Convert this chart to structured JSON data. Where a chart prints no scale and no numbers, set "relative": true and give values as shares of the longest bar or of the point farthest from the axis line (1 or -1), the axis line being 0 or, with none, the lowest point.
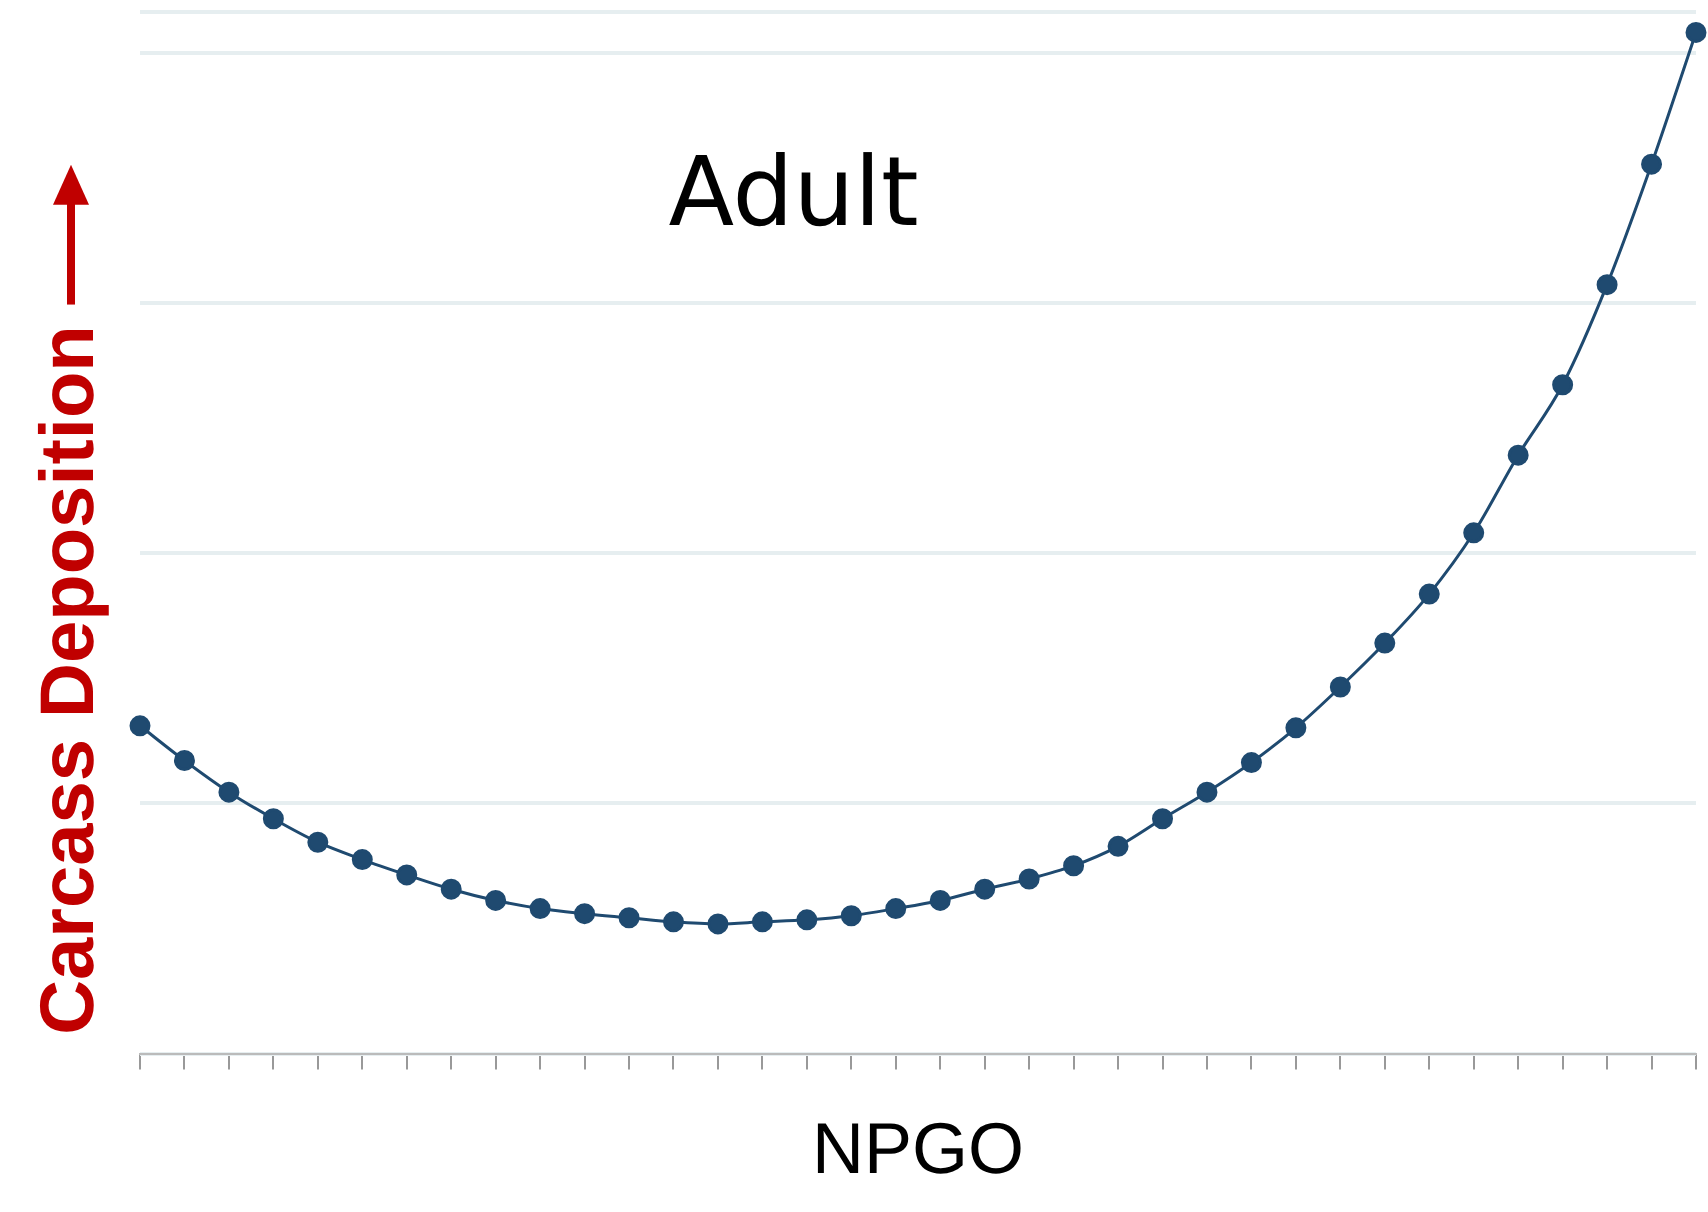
{
  "chart_data": {
    "type": "line",
    "title": "Adult",
    "xlabel": "NPGO",
    "ylabel": "Carcass Deposition",
    "relative": true,
    "grid": "y",
    "marker": "circle",
    "line_style": "solid",
    "tick_labels": false,
    "categories": [
      null,
      null,
      null,
      null,
      null,
      null,
      null,
      null,
      null,
      null,
      null,
      null,
      null,
      null,
      null,
      null,
      null,
      null,
      null,
      null,
      null,
      null,
      null,
      null,
      null,
      null,
      null,
      null,
      null,
      null,
      null,
      null,
      null,
      null,
      null,
      null
    ],
    "series": [
      {
        "color": "#1f4a70",
        "values": [
          0.321,
          0.287,
          0.256,
          0.23,
          0.207,
          0.19,
          0.175,
          0.161,
          0.15,
          0.142,
          0.137,
          0.133,
          0.129,
          0.127,
          0.129,
          0.131,
          0.135,
          0.142,
          0.15,
          0.161,
          0.171,
          0.184,
          0.203,
          0.23,
          0.256,
          0.285,
          0.319,
          0.359,
          0.402,
          0.45,
          0.51,
          0.586,
          0.655,
          0.753,
          0.871,
          1
        ]
      }
    ]
  }
}
